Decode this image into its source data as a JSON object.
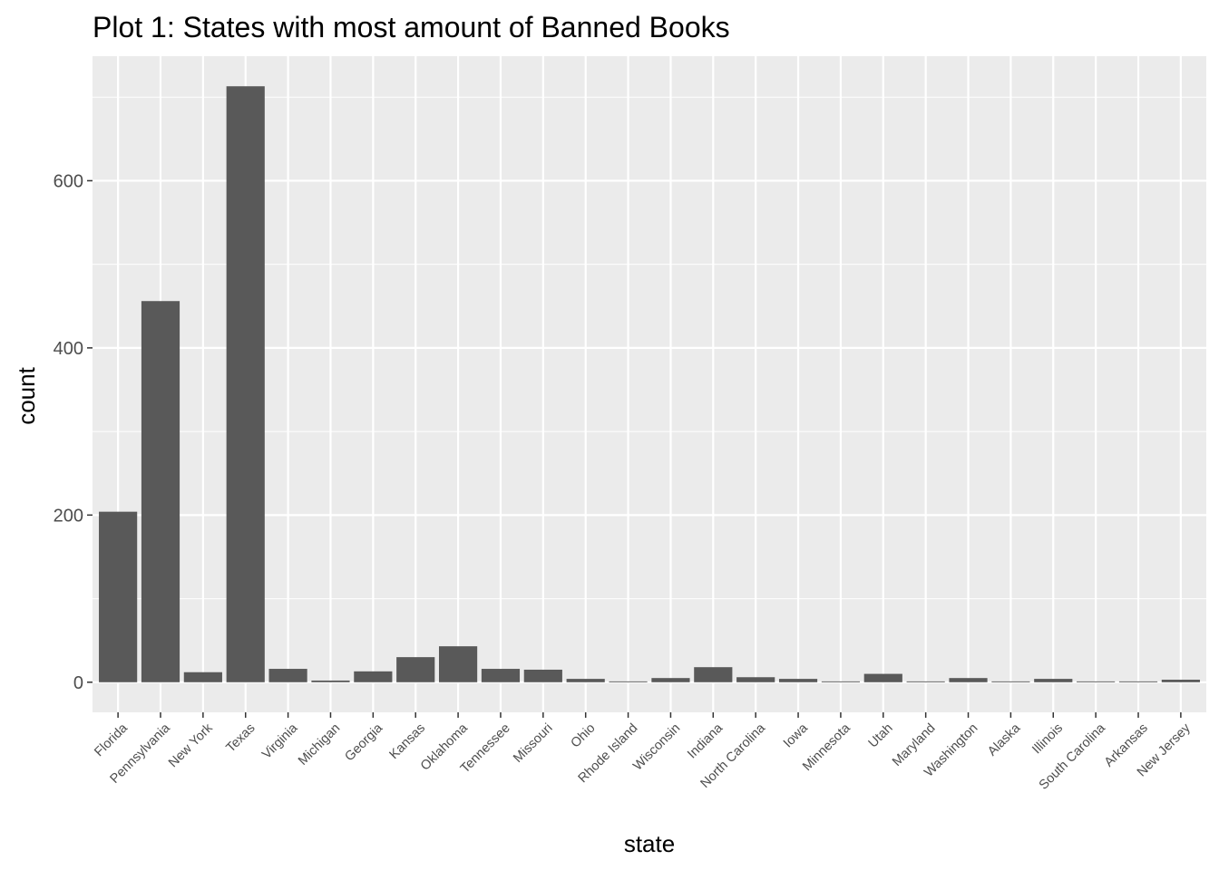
{
  "chart_data": {
    "type": "bar",
    "title": "Plot 1: States with most amount of Banned Books",
    "xlabel": "state",
    "ylabel": "count",
    "categories": [
      "Florida",
      "Pennsylvania",
      "New York",
      "Texas",
      "Virginia",
      "Michigan",
      "Georgia",
      "Kansas",
      "Oklahoma",
      "Tennessee",
      "Missouri",
      "Ohio",
      "Rhode Island",
      "Wisconsin",
      "Indiana",
      "North Carolina",
      "Iowa",
      "Minnesota",
      "Utah",
      "Maryland",
      "Washington",
      "Alaska",
      "Illinois",
      "South Carolina",
      "Arkansas",
      "New Jersey"
    ],
    "values": [
      204,
      456,
      12,
      713,
      16,
      2,
      13,
      30,
      43,
      16,
      15,
      4,
      1,
      5,
      18,
      6,
      4,
      1,
      10,
      1,
      5,
      1,
      4,
      1,
      1,
      3
    ],
    "yticks": [
      0,
      200,
      400,
      600
    ],
    "ylim": [
      -36,
      749
    ],
    "grid": true,
    "bar_color": "#595959",
    "panel_color": "#ebebeb"
  }
}
